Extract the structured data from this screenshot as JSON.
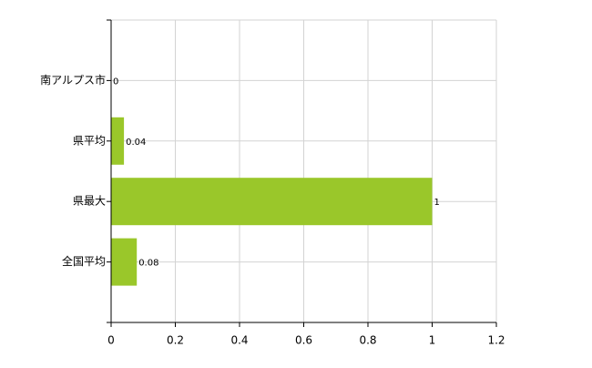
{
  "chart_data": {
    "type": "bar",
    "orientation": "horizontal",
    "categories": [
      "南アルプス市",
      "県平均",
      "県最大",
      "全国平均"
    ],
    "values": [
      0,
      0.04,
      1,
      0.08
    ],
    "color": "#9ac72a",
    "xlim": [
      0,
      1.2
    ],
    "xticks": [
      0,
      0.2,
      0.4,
      0.6,
      0.8,
      1,
      1.2
    ],
    "grid": true
  }
}
